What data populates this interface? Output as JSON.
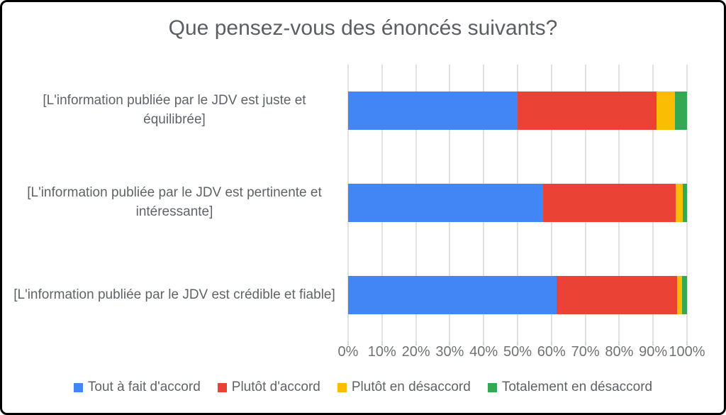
{
  "chart_data": {
    "type": "bar",
    "orientation": "horizontal",
    "stacked": true,
    "title": "Que pensez-vous des énoncés suivants?",
    "categories": [
      "[L'information publiée par le JDV est juste et équilibrée]",
      "[L'information publiée par le JDV est pertinente et intéressante]",
      "[L'information publiée par le JDV est crédible et fiable]"
    ],
    "series": [
      {
        "name": "Tout à fait d'accord",
        "color": "#4285F4",
        "values": [
          50.0,
          57.5,
          61.6
        ]
      },
      {
        "name": "Plutôt d'accord",
        "color": "#EA4335",
        "values": [
          41.0,
          39.2,
          35.5
        ]
      },
      {
        "name": "Plutôt en désaccord",
        "color": "#FBBC04",
        "values": [
          5.4,
          2.1,
          1.4
        ]
      },
      {
        "name": "Totalement en désaccord",
        "color": "#34A853",
        "values": [
          3.6,
          1.2,
          1.5
        ]
      }
    ],
    "x_axis": {
      "min": 0,
      "max": 100,
      "tick_labels": [
        "0%",
        "10%",
        "20%",
        "30%",
        "40%",
        "50%",
        "60%",
        "70%",
        "80%",
        "90%",
        "100%"
      ]
    },
    "legend_position": "bottom",
    "grid": true,
    "colors": {
      "gridline": "#e1e1e1",
      "title_text": "#5b5e63",
      "label_text": "#5f6368",
      "axis_text": "#6f7276",
      "border": "#000000",
      "background": "#ffffff"
    }
  }
}
